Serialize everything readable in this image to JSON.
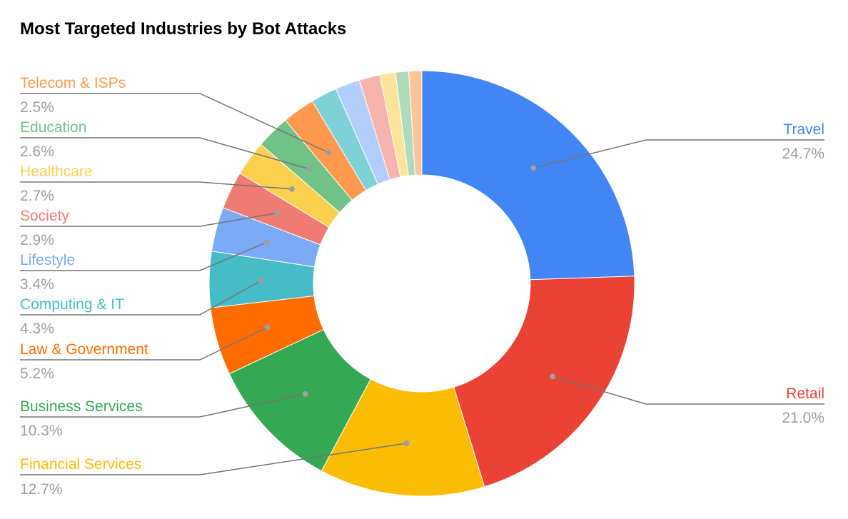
{
  "chart_data": {
    "type": "pie",
    "variant": "donut",
    "title": "Most Targeted Industries by Bot Attacks",
    "slices": [
      {
        "label": "Travel",
        "value_label": "24.7%",
        "value": 24.7,
        "color": "#4285f4",
        "labeled": true
      },
      {
        "label": "Retail",
        "value_label": "21.0%",
        "value": 21.0,
        "color": "#ea4335",
        "labeled": true
      },
      {
        "label": "Financial Services",
        "value_label": "12.7%",
        "value": 12.7,
        "color": "#fbbc04",
        "labeled": true
      },
      {
        "label": "Business Services",
        "value_label": "10.3%",
        "value": 10.3,
        "color": "#34a853",
        "labeled": true
      },
      {
        "label": "Law & Government",
        "value_label": "5.2%",
        "value": 5.2,
        "color": "#ff6d01",
        "labeled": true
      },
      {
        "label": "Computing & IT",
        "value_label": "4.3%",
        "value": 4.3,
        "color": "#46bdc6",
        "labeled": true
      },
      {
        "label": "Lifestyle",
        "value_label": "3.4%",
        "value": 3.4,
        "color": "#7baaf7",
        "labeled": true
      },
      {
        "label": "Society",
        "value_label": "2.9%",
        "value": 2.9,
        "color": "#f07b72",
        "labeled": true
      },
      {
        "label": "Healthcare",
        "value_label": "2.7%",
        "value": 2.7,
        "color": "#fcd04f",
        "labeled": true
      },
      {
        "label": "Education",
        "value_label": "2.6%",
        "value": 2.6,
        "color": "#71c287",
        "labeled": true
      },
      {
        "label": "Telecom & ISPs",
        "value_label": "2.5%",
        "value": 2.5,
        "color": "#ff994d",
        "labeled": true
      },
      {
        "label": "",
        "value": 2.0,
        "color": "#7ed1d7",
        "labeled": false
      },
      {
        "label": "",
        "value": 1.9,
        "color": "#b3cefb",
        "labeled": false
      },
      {
        "label": "",
        "value": 1.6,
        "color": "#f7b4ae",
        "labeled": false
      },
      {
        "label": "",
        "value": 1.2,
        "color": "#fde49b",
        "labeled": false
      },
      {
        "label": "",
        "value": 1.0,
        "color": "#aedcba",
        "labeled": false
      },
      {
        "label": "",
        "value": 1.0,
        "color": "#ffc599",
        "labeled": false
      }
    ],
    "legend": "none",
    "data_labels": "outside with leader lines"
  }
}
